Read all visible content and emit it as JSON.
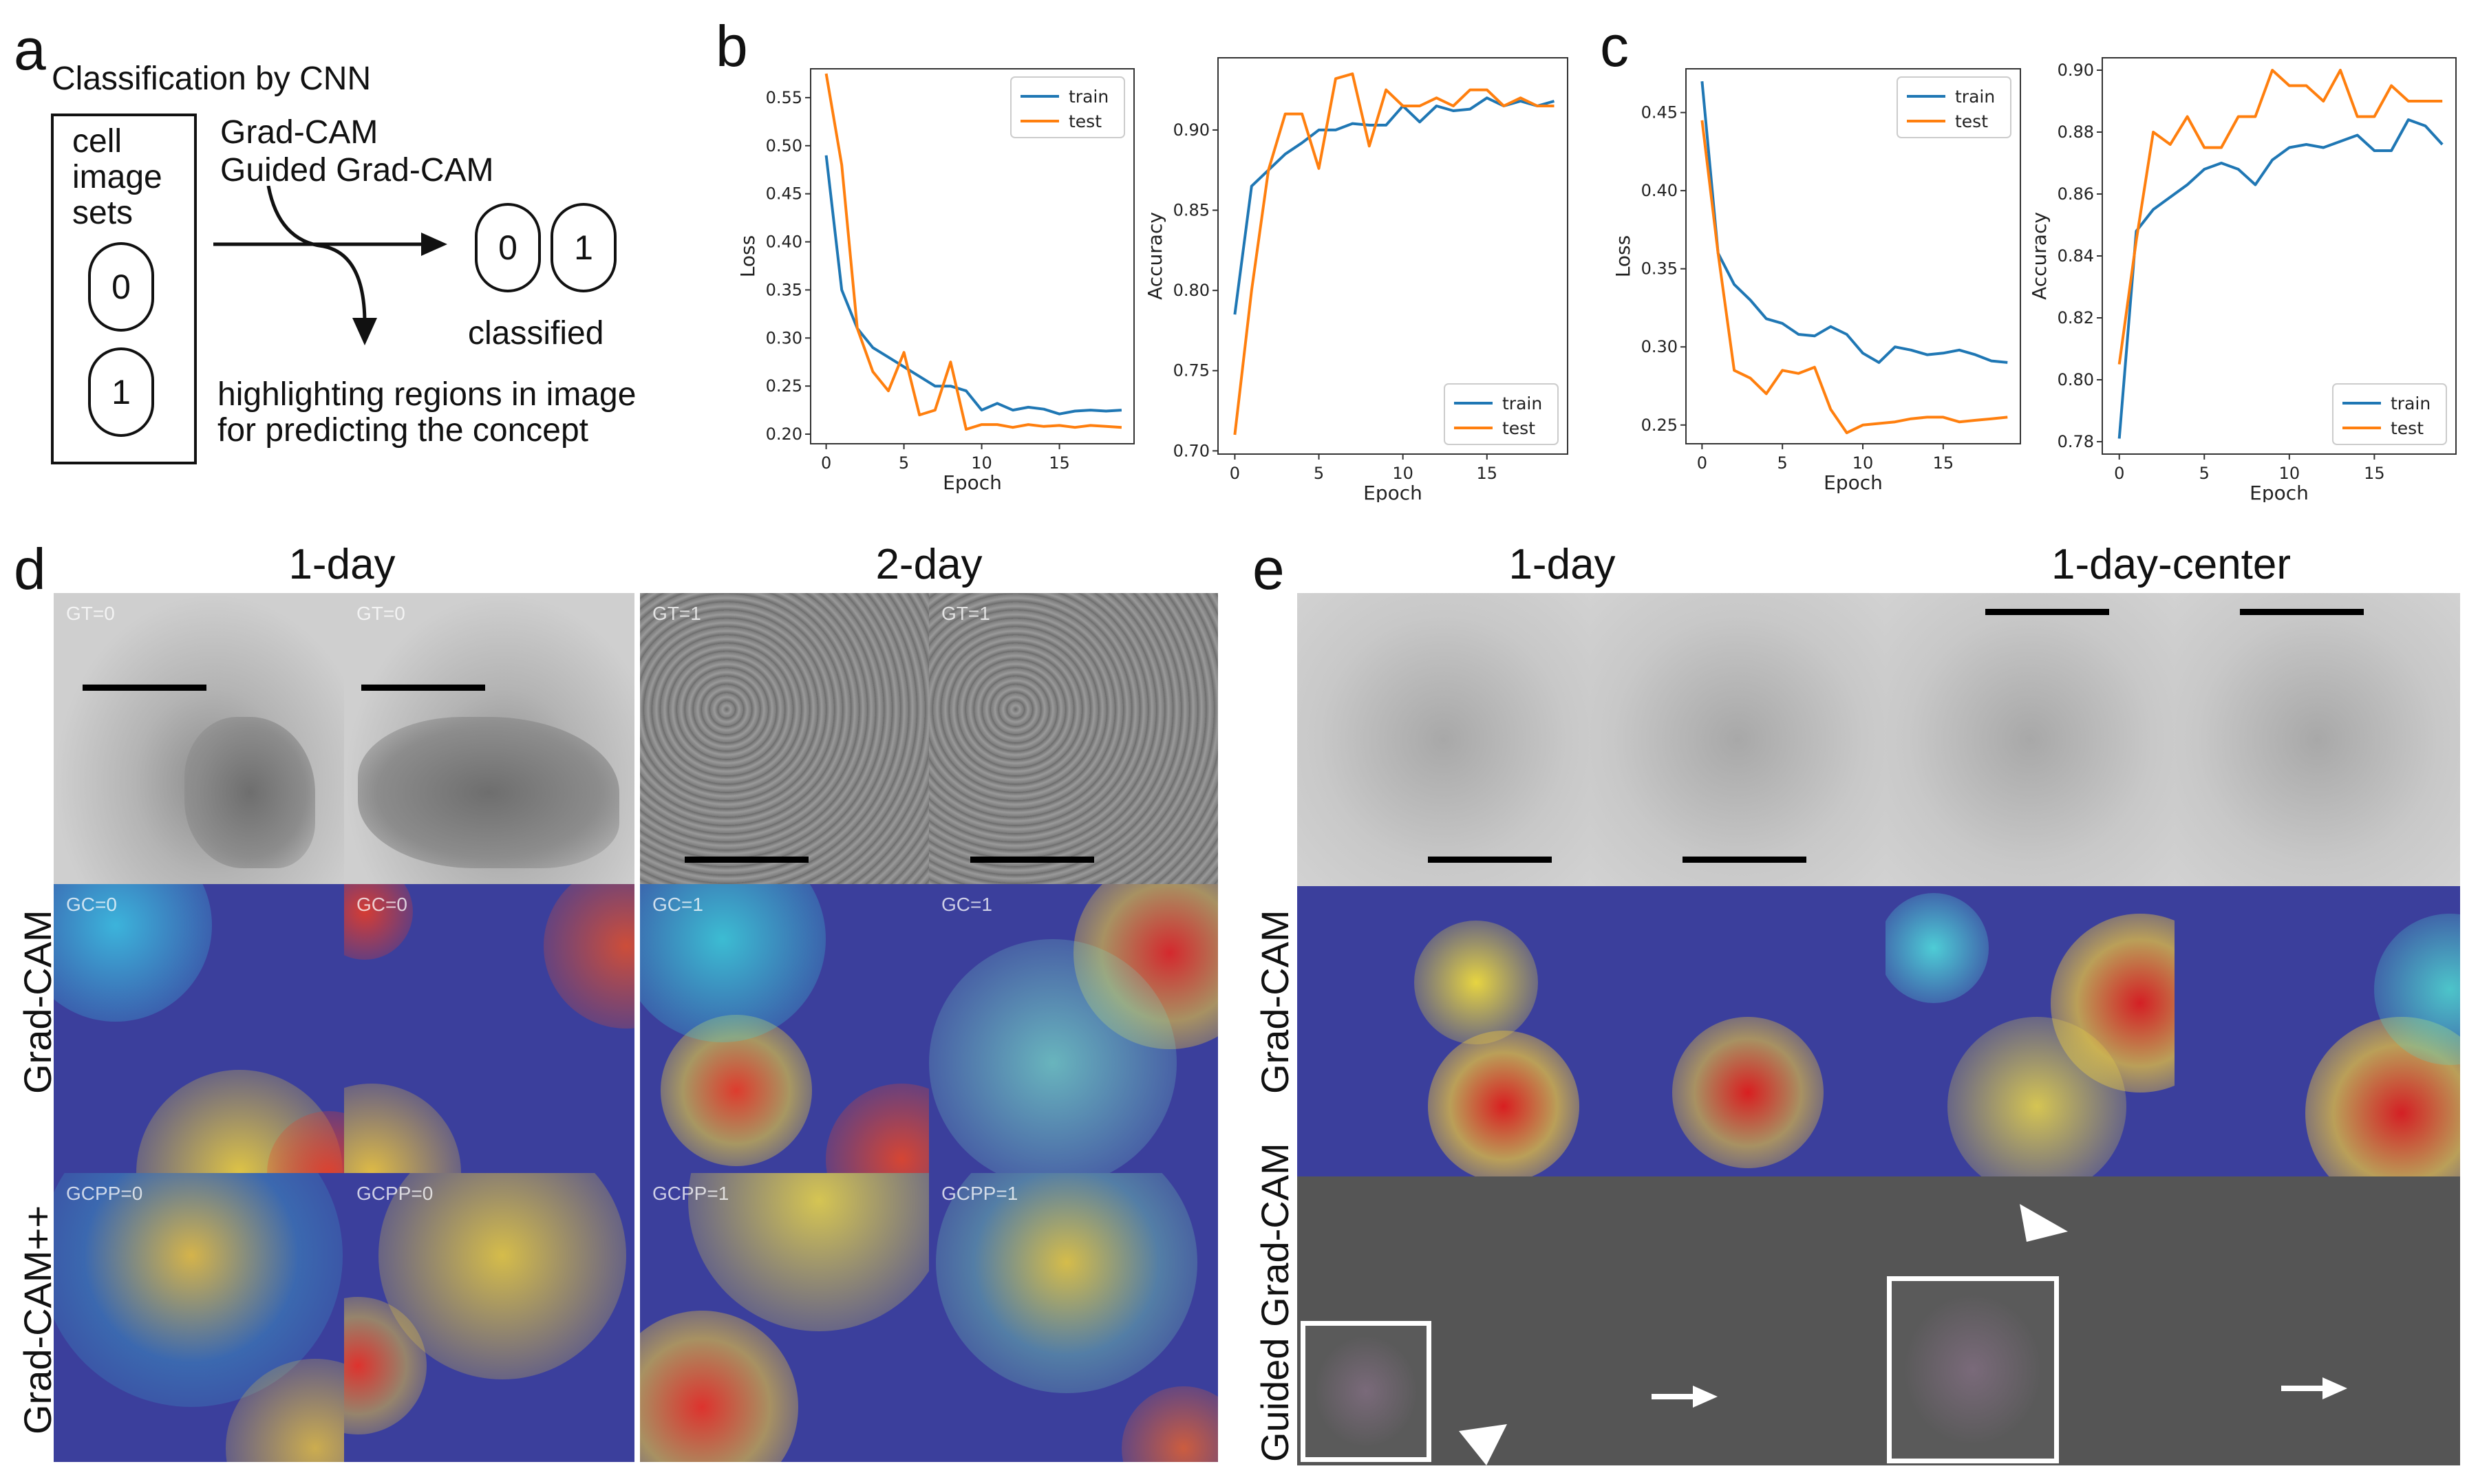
{
  "panels": {
    "a": {
      "label": "a",
      "title": "Classification by CNN",
      "box_lines": [
        "cell",
        "image",
        "sets"
      ],
      "class0": "0",
      "class1": "1",
      "methods": [
        "Grad-CAM",
        "Guided Grad-CAM"
      ],
      "classified": "classified",
      "highlight_lines": [
        "highlighting regions in image",
        "for predicting the concept"
      ]
    },
    "b": {
      "label": "b"
    },
    "c": {
      "label": "c"
    },
    "d": {
      "label": "d",
      "col_titles": [
        "1-day",
        "2-day"
      ],
      "row_labels": [
        "Grad-CAM",
        "Grad-CAM++"
      ],
      "tile_labels": [
        "GT=0",
        "GT=0",
        "GT=1",
        "GT=1",
        "GC=0",
        "GC=0",
        "GC=1",
        "GC=1",
        "GCPP=0",
        "GCPP=0",
        "GCPP=1",
        "GCPP=1"
      ]
    },
    "e": {
      "label": "e",
      "col_titles": [
        "1-day",
        "1-day-center"
      ],
      "row_labels": [
        "Grad-CAM",
        "Guided Grad-CAM"
      ]
    }
  },
  "chart_data": [
    {
      "id": "b-loss",
      "type": "line",
      "xlabel": "Epoch",
      "ylabel": "Loss",
      "xlim": [
        -1,
        19.8
      ],
      "ylim": [
        0.19,
        0.58
      ],
      "xticks": [
        0,
        5,
        10,
        15
      ],
      "yticks": [
        0.2,
        0.25,
        0.3,
        0.35,
        0.4,
        0.45,
        0.5,
        0.55
      ],
      "ytick_labels": [
        "0.20",
        "0.25",
        "0.30",
        "0.35",
        "0.40",
        "0.45",
        "0.50",
        "0.55"
      ],
      "legend": "top-right",
      "series": [
        {
          "name": "train",
          "color": "#1f77b4",
          "x": [
            0,
            1,
            2,
            3,
            4,
            5,
            6,
            7,
            8,
            9,
            10,
            11,
            12,
            13,
            14,
            15,
            16,
            17,
            18,
            19
          ],
          "values": [
            0.49,
            0.35,
            0.31,
            0.29,
            0.28,
            0.27,
            0.26,
            0.25,
            0.25,
            0.245,
            0.225,
            0.232,
            0.225,
            0.228,
            0.226,
            0.221,
            0.224,
            0.225,
            0.224,
            0.225
          ]
        },
        {
          "name": "test",
          "color": "#ff7f0e",
          "x": [
            0,
            1,
            2,
            3,
            4,
            5,
            6,
            7,
            8,
            9,
            10,
            11,
            12,
            13,
            14,
            15,
            16,
            17,
            18,
            19
          ],
          "values": [
            0.575,
            0.48,
            0.31,
            0.265,
            0.245,
            0.285,
            0.22,
            0.225,
            0.275,
            0.205,
            0.21,
            0.21,
            0.207,
            0.21,
            0.208,
            0.209,
            0.207,
            0.209,
            0.208,
            0.207
          ]
        }
      ]
    },
    {
      "id": "b-acc",
      "type": "line",
      "xlabel": "Epoch",
      "ylabel": "Accuracy",
      "xlim": [
        -1,
        19.8
      ],
      "ylim": [
        0.698,
        0.945
      ],
      "xticks": [
        0,
        5,
        10,
        15
      ],
      "yticks": [
        0.7,
        0.75,
        0.8,
        0.85,
        0.9
      ],
      "ytick_labels": [
        "0.70",
        "0.75",
        "0.80",
        "0.85",
        "0.90"
      ],
      "legend": "bottom-right",
      "series": [
        {
          "name": "train",
          "color": "#1f77b4",
          "x": [
            0,
            1,
            2,
            3,
            4,
            5,
            6,
            7,
            8,
            9,
            10,
            11,
            12,
            13,
            14,
            15,
            16,
            17,
            18,
            19
          ],
          "values": [
            0.785,
            0.865,
            0.875,
            0.885,
            0.892,
            0.9,
            0.9,
            0.904,
            0.903,
            0.903,
            0.915,
            0.905,
            0.915,
            0.912,
            0.913,
            0.92,
            0.915,
            0.918,
            0.915,
            0.918
          ]
        },
        {
          "name": "test",
          "color": "#ff7f0e",
          "x": [
            0,
            1,
            2,
            3,
            4,
            5,
            6,
            7,
            8,
            9,
            10,
            11,
            12,
            13,
            14,
            15,
            16,
            17,
            18,
            19
          ],
          "values": [
            0.71,
            0.8,
            0.875,
            0.91,
            0.91,
            0.876,
            0.932,
            0.935,
            0.89,
            0.925,
            0.915,
            0.915,
            0.92,
            0.915,
            0.925,
            0.925,
            0.915,
            0.92,
            0.915,
            0.915
          ]
        }
      ]
    },
    {
      "id": "c-loss",
      "type": "line",
      "xlabel": "Epoch",
      "ylabel": "Loss",
      "xlim": [
        -1,
        19.8
      ],
      "ylim": [
        0.238,
        0.478
      ],
      "xticks": [
        0,
        5,
        10,
        15
      ],
      "yticks": [
        0.25,
        0.3,
        0.35,
        0.4,
        0.45
      ],
      "ytick_labels": [
        "0.25",
        "0.30",
        "0.35",
        "0.40",
        "0.45"
      ],
      "legend": "top-right",
      "series": [
        {
          "name": "train",
          "color": "#1f77b4",
          "x": [
            0,
            1,
            2,
            3,
            4,
            5,
            6,
            7,
            8,
            9,
            10,
            11,
            12,
            13,
            14,
            15,
            16,
            17,
            18,
            19
          ],
          "values": [
            0.47,
            0.36,
            0.34,
            0.33,
            0.318,
            0.315,
            0.308,
            0.307,
            0.313,
            0.308,
            0.296,
            0.29,
            0.3,
            0.298,
            0.295,
            0.296,
            0.298,
            0.295,
            0.291,
            0.29
          ]
        },
        {
          "name": "test",
          "color": "#ff7f0e",
          "x": [
            0,
            1,
            2,
            3,
            4,
            5,
            6,
            7,
            8,
            9,
            10,
            11,
            12,
            13,
            14,
            15,
            16,
            17,
            18,
            19
          ],
          "values": [
            0.445,
            0.36,
            0.285,
            0.28,
            0.27,
            0.285,
            0.283,
            0.287,
            0.26,
            0.245,
            0.25,
            0.251,
            0.252,
            0.254,
            0.255,
            0.255,
            0.252,
            0.253,
            0.254,
            0.255
          ]
        }
      ]
    },
    {
      "id": "c-acc",
      "type": "line",
      "xlabel": "Epoch",
      "ylabel": "Accuracy",
      "xlim": [
        -1,
        19.8
      ],
      "ylim": [
        0.776,
        0.904
      ],
      "xticks": [
        0,
        5,
        10,
        15
      ],
      "yticks": [
        0.78,
        0.8,
        0.82,
        0.84,
        0.86,
        0.88,
        0.9
      ],
      "ytick_labels": [
        "0.78",
        "0.80",
        "0.82",
        "0.84",
        "0.86",
        "0.88",
        "0.90"
      ],
      "legend": "bottom-right",
      "series": [
        {
          "name": "train",
          "color": "#1f77b4",
          "x": [
            0,
            1,
            2,
            3,
            4,
            5,
            6,
            7,
            8,
            9,
            10,
            11,
            12,
            13,
            14,
            15,
            16,
            17,
            18,
            19
          ],
          "values": [
            0.781,
            0.848,
            0.855,
            0.859,
            0.863,
            0.868,
            0.87,
            0.868,
            0.863,
            0.871,
            0.875,
            0.876,
            0.875,
            0.877,
            0.879,
            0.874,
            0.874,
            0.884,
            0.882,
            0.876
          ]
        },
        {
          "name": "test",
          "color": "#ff7f0e",
          "x": [
            0,
            1,
            2,
            3,
            4,
            5,
            6,
            7,
            8,
            9,
            10,
            11,
            12,
            13,
            14,
            15,
            16,
            17,
            18,
            19
          ],
          "values": [
            0.805,
            0.845,
            0.88,
            0.876,
            0.885,
            0.875,
            0.875,
            0.885,
            0.885,
            0.9,
            0.895,
            0.895,
            0.89,
            0.9,
            0.885,
            0.885,
            0.895,
            0.89,
            0.89,
            0.89
          ]
        }
      ]
    }
  ]
}
